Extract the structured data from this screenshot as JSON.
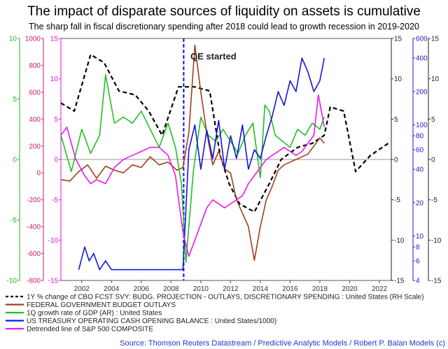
{
  "chart_data": {
    "type": "line",
    "title": "The impact of disparate sources of liquidity on assets is cumulative",
    "subtitle": "The sharp fall in fiscal discretionary spending after 2018 could lead to growth recession in 2019-2020",
    "annotation": "QE started",
    "source": "Source: Thomson Reuters Datastream / Predictive Analytic Models / Robert P. Balan Models (c)",
    "x_range": [
      2000.6,
      2022.8
    ],
    "x_ticks": [
      "2002",
      "2004",
      "2006",
      "2008",
      "2010",
      "2012",
      "2014",
      "2016",
      "2018",
      "2020",
      "2022"
    ],
    "axes": {
      "left_outer": {
        "range": [
          -10,
          10
        ],
        "ticks": [
          "10",
          "5",
          "0",
          "-5",
          "-10"
        ],
        "color": "#21b021"
      },
      "left_red": {
        "range": [
          -800,
          1000
        ],
        "ticks": [
          "1000",
          "800",
          "600",
          "400",
          "200",
          "0",
          "-200",
          "-400",
          "-600",
          "-800"
        ],
        "color": "#d0186a"
      },
      "left_magenta": {
        "range": [
          -15,
          15
        ],
        "ticks": [
          "15",
          "10",
          "5",
          "0",
          "-5",
          "-10",
          "-15"
        ],
        "color": "#e010e0"
      },
      "right_black": {
        "range": [
          -15,
          15
        ],
        "ticks": [
          "15",
          "10",
          "5",
          "0",
          "-5",
          "-10",
          "-15"
        ],
        "color": "#222222"
      },
      "right_blue_log": {
        "range": [
          4,
          600
        ],
        "ticks": [
          "600",
          "400",
          "200",
          "100",
          "80",
          "60",
          "40",
          "20",
          "10",
          "8",
          "6",
          "4"
        ],
        "color": "#1a1ad0"
      },
      "right_outer": {
        "range": [
          -15,
          15
        ],
        "ticks": [
          "15",
          "10",
          "5",
          "0",
          "-5",
          "-10",
          "-15"
        ],
        "color": "#222222"
      }
    },
    "legend_placement": "bottom-left",
    "grid": false,
    "series": [
      {
        "name": "1Y % change of CBO FCST SVY: BUDG. PROJECTION - OUTLAYS, DISCRETIONARY SPENDING : United States (RH Scale)",
        "color": "#000000",
        "axis": "right_black",
        "style": "dashed",
        "x": [
          2000.6,
          2001.5,
          2002.6,
          2003.5,
          2004.5,
          2005.6,
          2006.5,
          2007.4,
          2008.5,
          2009.6,
          2010.6,
          2011.3,
          2011.9,
          2012.6,
          2013.6,
          2014.6,
          2015.4,
          2016.5,
          2017.5,
          2018.3,
          2018.7,
          2019.6,
          2020.4,
          2021.4,
          2022.6
        ],
        "y": [
          7,
          6,
          13,
          12,
          8.5,
          8,
          6,
          3,
          9,
          9,
          8.5,
          0.5,
          -3,
          -5.5,
          -6.5,
          -3,
          0,
          1.5,
          2,
          3,
          6.5,
          6,
          -1.5,
          0.5,
          2
        ]
      },
      {
        "name": "FEDERAL GOVERNMENT BUDGET OUTLAYS",
        "color": "#a0401a",
        "axis": "left_red",
        "style": "solid",
        "x": [
          2000.6,
          2001.2,
          2001.8,
          2002.4,
          2003.0,
          2003.6,
          2004.2,
          2004.8,
          2005.4,
          2006.0,
          2006.6,
          2007.2,
          2007.8,
          2008.4,
          2008.8,
          2009.2,
          2009.6,
          2010.0,
          2010.4,
          2010.8,
          2011.2,
          2011.6,
          2012.0,
          2012.4,
          2012.8,
          2013.2,
          2013.6,
          2014.0,
          2014.4,
          2014.8,
          2015.2,
          2015.6,
          2016.0,
          2016.4,
          2016.8,
          2017.2,
          2017.6,
          2018.0,
          2018.3
        ],
        "y": [
          -50,
          -60,
          10,
          60,
          -40,
          50,
          20,
          0,
          60,
          40,
          120,
          60,
          80,
          20,
          40,
          300,
          950,
          600,
          300,
          60,
          160,
          30,
          0,
          -200,
          -300,
          -400,
          -650,
          -400,
          -200,
          -100,
          20,
          60,
          80,
          100,
          120,
          140,
          200,
          260,
          220
        ]
      },
      {
        "name": "1Q growth rate of GDP (AR) : United States",
        "color": "#22c022",
        "axis": "left_outer",
        "style": "solid",
        "x": [
          2000.6,
          2001.3,
          2002.0,
          2002.6,
          2003.2,
          2003.6,
          2004.2,
          2004.8,
          2005.4,
          2006.0,
          2006.6,
          2007.2,
          2007.8,
          2008.3,
          2008.7,
          2009.0,
          2009.5,
          2010.0,
          2010.5,
          2011.0,
          2011.5,
          2012.0,
          2012.5,
          2013.0,
          2013.5,
          2014.0,
          2014.3,
          2014.6,
          2015.0,
          2015.5,
          2016.0,
          2016.5,
          2017.0,
          2017.5,
          2018.0,
          2018.3
        ],
        "y": [
          2,
          -1,
          2.5,
          0.5,
          2,
          7,
          3,
          3.5,
          3,
          4,
          2.5,
          1,
          3,
          1,
          -2,
          -8.5,
          -1,
          3.5,
          2,
          1.5,
          2.5,
          1.5,
          0.5,
          2,
          3,
          -1.5,
          4.5,
          4,
          2,
          1.5,
          1,
          2.5,
          2,
          3,
          2.5,
          3.5
        ]
      },
      {
        "name": "US TREASURY OPERATING CASH OPENING BALANCE : United States/1000)",
        "color": "#1515e0",
        "axis": "right_blue_log",
        "style": "solid",
        "x": [
          2001.8,
          2002.2,
          2002.5,
          2002.8,
          2003.2,
          2003.6,
          2004.0,
          2004.5,
          2005.0,
          2006.0,
          2007.0,
          2008.0,
          2008.8,
          2009.2,
          2009.6,
          2010.0,
          2010.4,
          2010.8,
          2011.2,
          2011.6,
          2012.0,
          2012.4,
          2012.8,
          2013.2,
          2013.6,
          2014.0,
          2014.4,
          2014.8,
          2015.2,
          2015.6,
          2016.0,
          2016.4,
          2016.8,
          2017.2,
          2017.6,
          2018.0,
          2018.3
        ],
        "y": [
          5,
          8,
          6,
          7,
          5,
          6,
          5,
          5,
          5,
          5,
          5,
          5,
          5,
          60,
          100,
          40,
          90,
          50,
          110,
          40,
          80,
          50,
          100,
          40,
          60,
          50,
          80,
          120,
          200,
          150,
          250,
          200,
          400,
          300,
          200,
          250,
          400
        ]
      },
      {
        "name": "Detrended line of S&P 500 COMPOSITE",
        "color": "#ee18ee",
        "axis": "left_magenta",
        "style": "solid",
        "x": [
          2000.6,
          2001.0,
          2001.6,
          2002.2,
          2002.6,
          2003.0,
          2003.6,
          2004.2,
          2004.8,
          2005.4,
          2006.0,
          2006.6,
          2007.2,
          2007.8,
          2008.3,
          2008.8,
          2009.2,
          2009.6,
          2010.0,
          2010.4,
          2010.8,
          2011.2,
          2011.6,
          2012.0,
          2012.4,
          2012.8,
          2013.2,
          2013.6,
          2014.0,
          2014.4,
          2014.8,
          2015.2,
          2015.6,
          2016.0,
          2016.4,
          2016.8,
          2017.2,
          2017.6,
          2017.9,
          2018.1,
          2018.3
        ],
        "y": [
          3,
          4,
          0,
          -2,
          -3,
          -2.5,
          -3,
          -1,
          0,
          0.5,
          1,
          1.5,
          1.5,
          0.5,
          -2,
          -9,
          -12,
          -10,
          -8,
          -6,
          -5,
          -5.5,
          -6,
          -5.5,
          -5,
          -4.5,
          -3,
          -2,
          -1,
          0,
          0.5,
          1,
          1.5,
          1,
          0.5,
          1,
          2,
          3,
          8,
          6,
          4
        ]
      }
    ]
  }
}
